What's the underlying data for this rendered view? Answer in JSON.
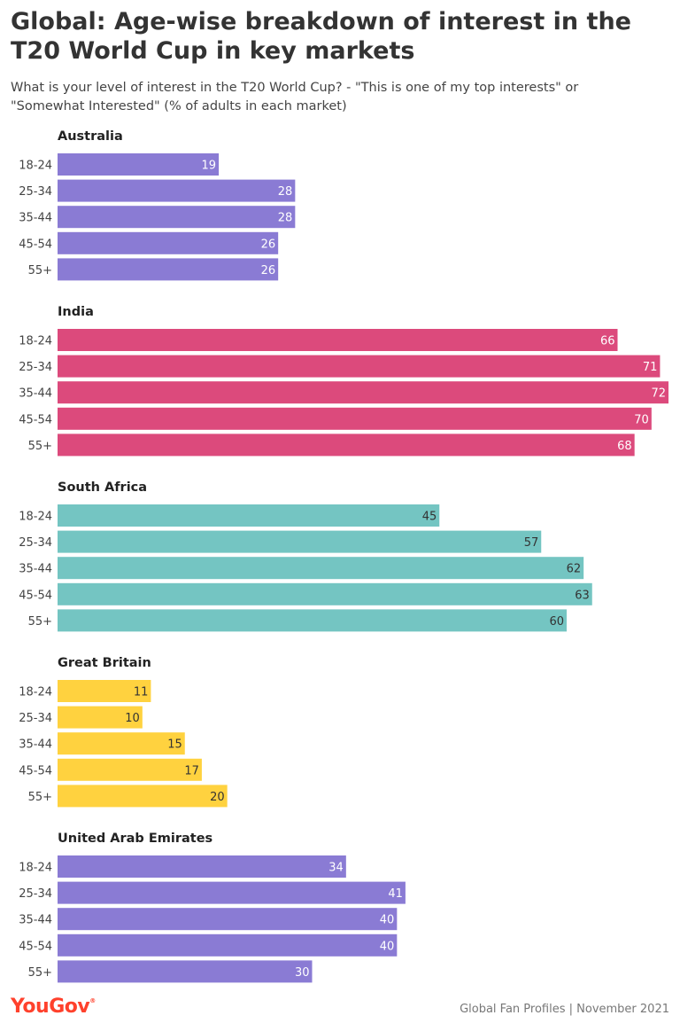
{
  "title": "Global: Age-wise breakdown of interest in the T20 World Cup in key markets",
  "subtitle": "What is your level of interest in the T20 World Cup? - \"This is one of my top interests\" or \"Somewhat Interested\" (% of adults in each market)",
  "footer": {
    "brand": "YouGov",
    "source": "Global Fan Profiles | November 2021"
  },
  "chart_data": {
    "type": "bar",
    "orientation": "horizontal",
    "categories": [
      "18-24",
      "25-34",
      "35-44",
      "45-54",
      "55+"
    ],
    "xlim": [
      0,
      72
    ],
    "grid": false,
    "legend": "none",
    "data_labels": true,
    "groups": [
      {
        "name": "Australia",
        "color": "#8a7bd4",
        "label_color": "#ffffff",
        "values": [
          19,
          28,
          28,
          26,
          26
        ]
      },
      {
        "name": "India",
        "color": "#dc4a7c",
        "label_color": "#ffffff",
        "values": [
          66,
          71,
          72,
          70,
          68
        ]
      },
      {
        "name": "South Africa",
        "color": "#74c5c2",
        "label_color": "#333333",
        "values": [
          45,
          57,
          62,
          63,
          60
        ]
      },
      {
        "name": "Great Britain",
        "color": "#ffd23f",
        "label_color": "#333333",
        "values": [
          11,
          10,
          15,
          17,
          20
        ]
      },
      {
        "name": "United Arab Emirates",
        "color": "#8a7bd4",
        "label_color": "#ffffff",
        "values": [
          34,
          41,
          40,
          40,
          30
        ]
      }
    ]
  }
}
